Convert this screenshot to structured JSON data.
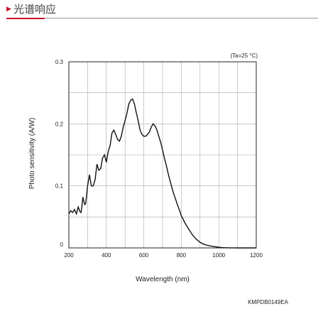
{
  "header": {
    "title": "光谱响应"
  },
  "chart_data": {
    "type": "line",
    "title": "",
    "xlabel": "Wavelength (nm)",
    "ylabel": "Photo sensitivity (A/W)",
    "xlim": [
      200,
      1200
    ],
    "ylim": [
      0,
      0.3
    ],
    "x_ticks": [
      "200",
      "400",
      "600",
      "800",
      "1000",
      "1200"
    ],
    "y_ticks": [
      "0",
      "0.1",
      "0.2",
      "0.3"
    ],
    "condition": "(Ta=25 °C)",
    "code": "KMPDB0149EA",
    "grid": true,
    "series": [
      {
        "x": [
          200,
          210,
          220,
          230,
          240,
          250,
          260,
          265,
          270,
          275,
          280,
          285,
          290,
          300,
          310,
          320,
          330,
          340,
          350,
          360,
          370,
          380,
          390,
          400,
          410,
          420,
          430,
          440,
          450,
          460,
          470,
          480,
          490,
          500,
          510,
          520,
          530,
          540,
          550,
          560,
          570,
          580,
          590,
          600,
          610,
          620,
          630,
          640,
          650,
          660,
          670,
          680,
          690,
          700,
          710,
          720,
          730,
          740,
          750,
          760,
          770,
          780,
          790,
          800,
          820,
          840,
          860,
          880,
          900,
          920,
          940,
          960,
          980,
          1000,
          1020,
          1040,
          1060,
          1080,
          1100,
          1120,
          1140,
          1160,
          1180,
          1200
        ],
        "y": [
          0.055,
          0.06,
          0.057,
          0.062,
          0.055,
          0.066,
          0.058,
          0.057,
          0.068,
          0.082,
          0.075,
          0.07,
          0.072,
          0.1,
          0.118,
          0.1,
          0.1,
          0.11,
          0.135,
          0.125,
          0.128,
          0.145,
          0.15,
          0.138,
          0.155,
          0.165,
          0.185,
          0.19,
          0.183,
          0.175,
          0.172,
          0.18,
          0.195,
          0.205,
          0.217,
          0.232,
          0.238,
          0.24,
          0.232,
          0.218,
          0.205,
          0.19,
          0.183,
          0.18,
          0.18,
          0.183,
          0.187,
          0.195,
          0.2,
          0.197,
          0.19,
          0.18,
          0.17,
          0.158,
          0.145,
          0.133,
          0.12,
          0.108,
          0.097,
          0.087,
          0.078,
          0.069,
          0.061,
          0.052,
          0.04,
          0.03,
          0.021,
          0.014,
          0.009,
          0.006,
          0.004,
          0.003,
          0.002,
          0.001,
          0.0005,
          0.0002,
          0.0001,
          0.0001,
          0.0,
          0.0,
          0.0,
          0.0,
          0.0,
          0.0
        ]
      }
    ]
  }
}
